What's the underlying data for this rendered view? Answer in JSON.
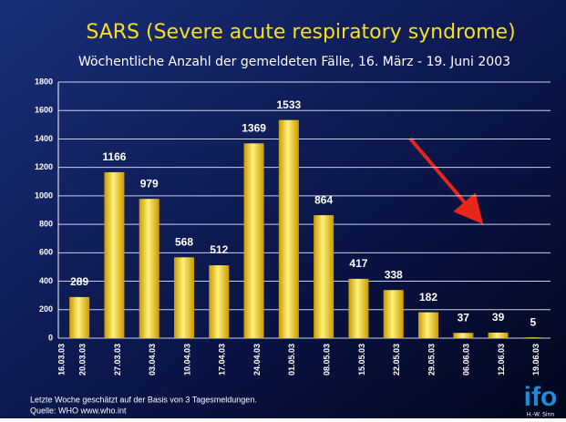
{
  "chart_data": {
    "type": "bar",
    "title": "SARS (Severe acute respiratory syndrome)",
    "subtitle": "Wöchentliche Anzahl der gemeldeten Fälle, 16. März - 19. Juni 2003",
    "x_start_label": "16.03.03",
    "categories": [
      "20.03.03",
      "27.03.03",
      "03.04.03",
      "10.04.03",
      "17.04.03",
      "24.04.03",
      "01.05.03",
      "08.05.03",
      "15.05.03",
      "22.05.03",
      "29.05.03",
      "06.06.03",
      "12.06.03",
      "19.06.03"
    ],
    "values": [
      289,
      1166,
      979,
      568,
      512,
      1369,
      1533,
      864,
      417,
      338,
      182,
      37,
      39,
      5
    ],
    "color": "#f5d320",
    "ylim": [
      0,
      1800
    ],
    "yticks": [
      0,
      200,
      400,
      600,
      800,
      1000,
      1200,
      1400,
      1600,
      1800
    ],
    "grid": true,
    "notes": [
      "Letzte Woche geschätzt auf der Basis von 3 Tagesmeldungen.",
      "Quelle: WHO www.who.int"
    ],
    "logo": "ifo",
    "logo_author": "H.-W. Sinn"
  }
}
